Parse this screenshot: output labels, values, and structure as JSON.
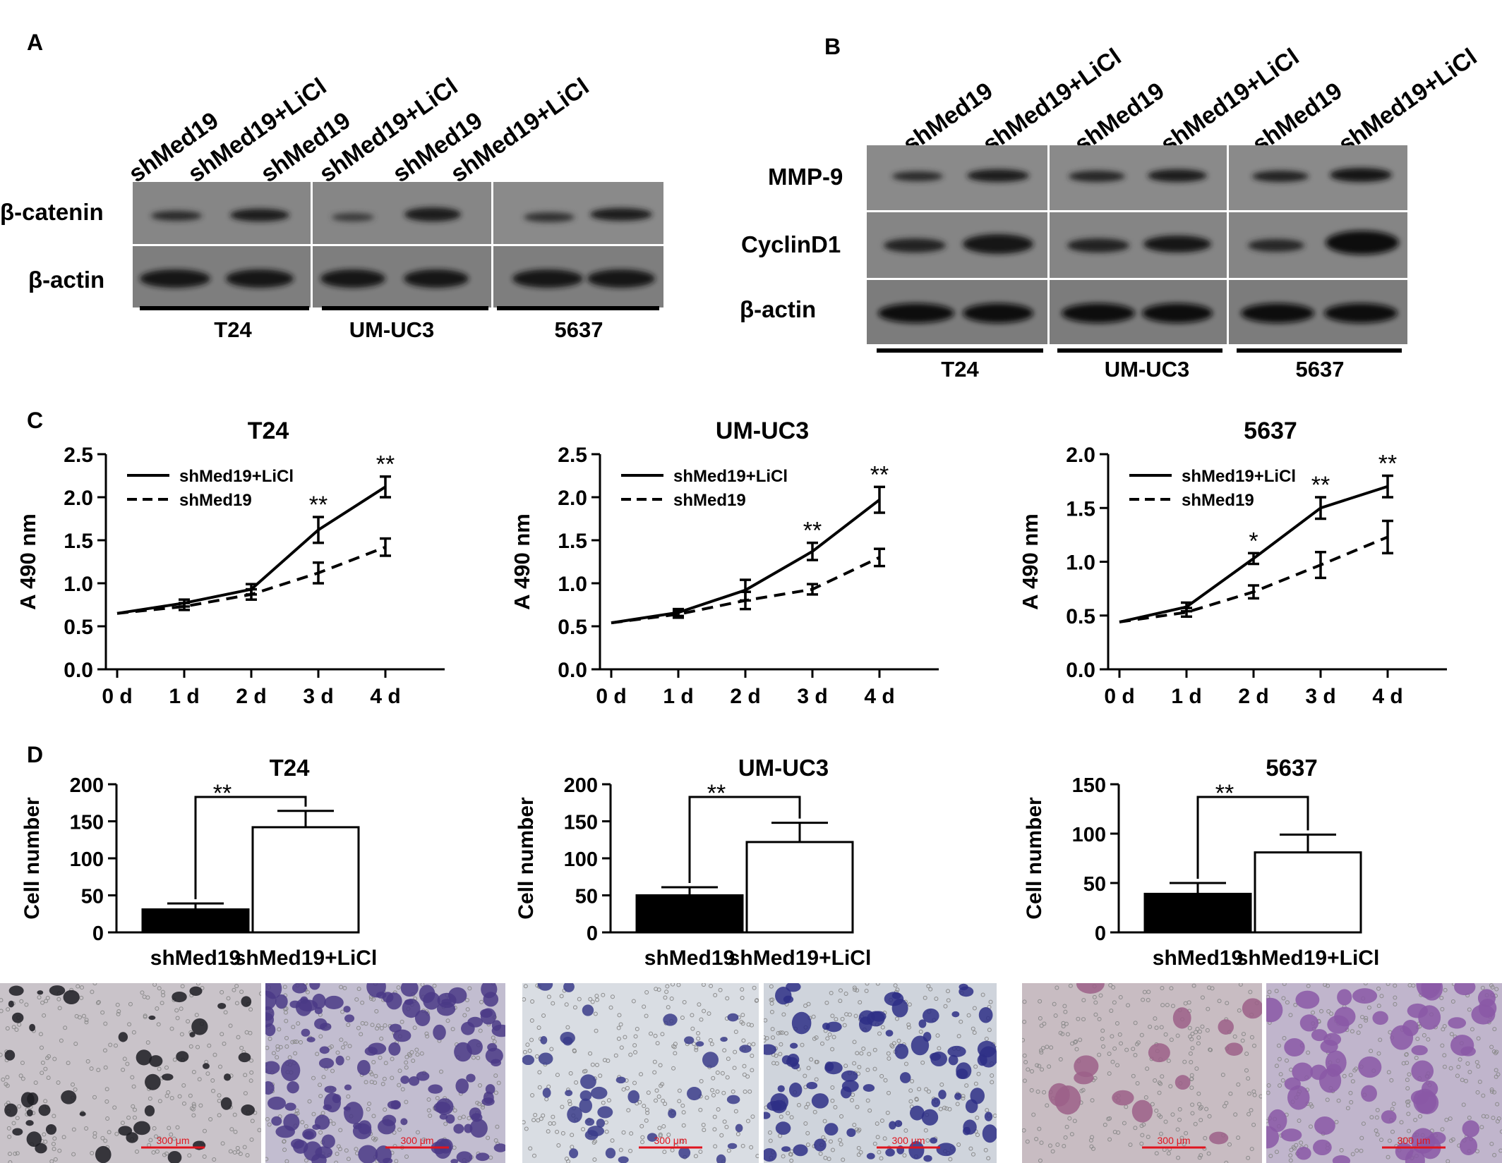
{
  "panels": {
    "A": "A",
    "B": "B",
    "C": "C",
    "D": "D"
  },
  "panelA": {
    "lanes": [
      "shMed19",
      "shMed19+LiCl",
      "shMed19",
      "shMed19+LiCl",
      "shMed19",
      "shMed19+LiCl"
    ],
    "rows": [
      "β-catenin",
      "β-actin"
    ],
    "cell_lines": [
      "T24",
      "UM-UC3",
      "5637"
    ]
  },
  "panelB": {
    "lanes": [
      "shMed19",
      "shMed19+LiCl",
      "shMed19",
      "shMed19+LiCl",
      "shMed19",
      "shMed19+LiCl"
    ],
    "rows": [
      "MMP-9",
      "CyclinD1",
      "β-actin"
    ],
    "cell_lines": [
      "T24",
      "UM-UC3",
      "5637"
    ]
  },
  "colors": {
    "blot_bg": "#8a8a8a",
    "band": "#1e1e1e",
    "bar_dark": "#000000",
    "bar_light": "#ffffff",
    "scale_bar": "#e0141e"
  },
  "chart_data": [
    {
      "type": "line",
      "title": "T24",
      "ylabel": "A 490 nm",
      "xlabel": "",
      "categories": [
        "0 d",
        "1 d",
        "2 d",
        "3 d",
        "4 d"
      ],
      "ylim": [
        0,
        2.5
      ],
      "yticks": [
        "0.0",
        "0.5",
        "1.0",
        "1.5",
        "2.0",
        "2.5"
      ],
      "legend": "top-left",
      "series": [
        {
          "name": "shMed19+LiCl",
          "style": "solid",
          "values": [
            0.65,
            0.77,
            0.93,
            1.62,
            2.12
          ],
          "errors": [
            0,
            0.04,
            0.06,
            0.15,
            0.12
          ]
        },
        {
          "name": "shMed19",
          "style": "dashed",
          "values": [
            0.65,
            0.73,
            0.87,
            1.12,
            1.42
          ],
          "errors": [
            0,
            0.04,
            0.06,
            0.12,
            0.1
          ]
        }
      ],
      "annotations": [
        {
          "x": "3 d",
          "text": "**"
        },
        {
          "x": "4 d",
          "text": "**"
        }
      ]
    },
    {
      "type": "line",
      "title": "UM-UC3",
      "ylabel": "A 490 nm",
      "xlabel": "",
      "categories": [
        "0 d",
        "1 d",
        "2 d",
        "3 d",
        "4 d"
      ],
      "ylim": [
        0,
        2.5
      ],
      "yticks": [
        "0.0",
        "0.5",
        "1.0",
        "1.5",
        "2.0",
        "2.5"
      ],
      "legend": "top-left",
      "series": [
        {
          "name": "shMed19+LiCl",
          "style": "solid",
          "values": [
            0.54,
            0.66,
            0.92,
            1.37,
            1.97
          ],
          "errors": [
            0,
            0.04,
            0.12,
            0.1,
            0.15
          ]
        },
        {
          "name": "shMed19",
          "style": "dashed",
          "values": [
            0.54,
            0.64,
            0.8,
            0.93,
            1.3
          ],
          "errors": [
            0,
            0.04,
            0.1,
            0.06,
            0.1
          ]
        }
      ],
      "annotations": [
        {
          "x": "3 d",
          "text": "**"
        },
        {
          "x": "4 d",
          "text": "**"
        }
      ]
    },
    {
      "type": "line",
      "title": "5637",
      "ylabel": "A 490 nm",
      "xlabel": "",
      "categories": [
        "0 d",
        "1 d",
        "2 d",
        "3 d",
        "4 d"
      ],
      "ylim": [
        0,
        2.0
      ],
      "yticks": [
        "0.0",
        "0.5",
        "1.0",
        "1.5",
        "2.0"
      ],
      "legend": "top-left",
      "series": [
        {
          "name": "shMed19+LiCl",
          "style": "solid",
          "values": [
            0.44,
            0.58,
            1.03,
            1.5,
            1.7
          ],
          "errors": [
            0,
            0.04,
            0.05,
            0.1,
            0.1
          ]
        },
        {
          "name": "shMed19",
          "style": "dashed",
          "values": [
            0.44,
            0.53,
            0.72,
            0.97,
            1.23
          ],
          "errors": [
            0,
            0.04,
            0.06,
            0.12,
            0.15
          ]
        }
      ],
      "annotations": [
        {
          "x": "2 d",
          "text": "*"
        },
        {
          "x": "3 d",
          "text": "**"
        },
        {
          "x": "4 d",
          "text": "**"
        }
      ]
    },
    {
      "type": "bar",
      "title": "T24",
      "ylabel": "Cell number",
      "categories": [
        "shMed19",
        "shMed19+LiCl"
      ],
      "values": [
        31,
        142
      ],
      "errors": [
        8,
        22
      ],
      "ylim": [
        0,
        200
      ],
      "yticks": [
        "0",
        "50",
        "100",
        "150",
        "200"
      ],
      "significance": "**"
    },
    {
      "type": "bar",
      "title": "UM-UC3",
      "ylabel": "Cell number",
      "categories": [
        "shMed19",
        "shMed19+LiCl"
      ],
      "values": [
        50,
        122
      ],
      "errors": [
        11,
        26
      ],
      "ylim": [
        0,
        200
      ],
      "yticks": [
        "0",
        "50",
        "100",
        "150",
        "200"
      ],
      "significance": "**"
    },
    {
      "type": "bar",
      "title": "5637",
      "ylabel": "Cell number",
      "categories": [
        "shMed19",
        "shMed19+LiCl"
      ],
      "values": [
        39,
        81
      ],
      "errors": [
        11,
        18
      ],
      "ylim": [
        0,
        150
      ],
      "yticks": [
        "0",
        "50",
        "100",
        "150"
      ],
      "significance": "**"
    }
  ],
  "micrographs": {
    "scale_text": "300 μm"
  }
}
